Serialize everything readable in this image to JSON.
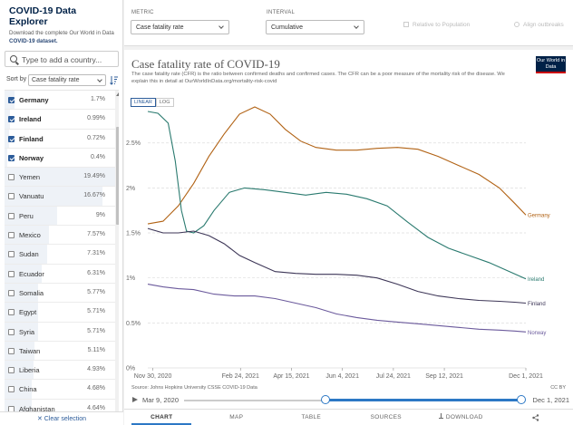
{
  "sidebar": {
    "title": "COVID-19 Data Explorer",
    "subtitle_prefix": "Download the complete Our World in Data",
    "subtitle_link": "COVID-19 dataset.",
    "search_placeholder": "Type to add a country...",
    "sort_label": "Sort by",
    "sort_value": "Case fatality rate",
    "clear_selection": "✕ Clear selection",
    "countries": [
      {
        "name": "Germany",
        "value": "1.7%",
        "selected": true
      },
      {
        "name": "Ireland",
        "value": "0.99%",
        "selected": true
      },
      {
        "name": "Finland",
        "value": "0.72%",
        "selected": true
      },
      {
        "name": "Norway",
        "value": "0.4%",
        "selected": true
      },
      {
        "name": "Yemen",
        "value": "19.49%",
        "selected": false
      },
      {
        "name": "Vanuatu",
        "value": "16.67%",
        "selected": false
      },
      {
        "name": "Peru",
        "value": "9%",
        "selected": false
      },
      {
        "name": "Mexico",
        "value": "7.57%",
        "selected": false
      },
      {
        "name": "Sudan",
        "value": "7.31%",
        "selected": false
      },
      {
        "name": "Ecuador",
        "value": "6.31%",
        "selected": false
      },
      {
        "name": "Somalia",
        "value": "5.77%",
        "selected": false
      },
      {
        "name": "Egypt",
        "value": "5.71%",
        "selected": false
      },
      {
        "name": "Syria",
        "value": "5.71%",
        "selected": false
      },
      {
        "name": "Taiwan",
        "value": "5.11%",
        "selected": false
      },
      {
        "name": "Liberia",
        "value": "4.93%",
        "selected": false
      },
      {
        "name": "China",
        "value": "4.68%",
        "selected": false
      },
      {
        "name": "Afghanistan",
        "value": "4.64%",
        "selected": false
      }
    ]
  },
  "controls": {
    "metric_label": "METRIC",
    "metric_value": "Case fatality rate",
    "interval_label": "INTERVAL",
    "interval_value": "Cumulative",
    "relative_label": "Relative to Population",
    "align_label": "Align outbreaks"
  },
  "chart": {
    "title": "Case fatality rate of COVID-19",
    "subtitle": "The case fatality rate (CFR) is the ratio between confirmed deaths and confirmed cases. The CFR can be a poor measure of the mortality risk of the disease. We explain this in detail at OurWorldInData.org/mortality-risk-covid",
    "logo": "Our World in Data",
    "scale_linear": "LINEAR",
    "scale_log": "LOG",
    "source": "Source: Johns Hopkins University CSSE COVID-19 Data",
    "license": "CC BY"
  },
  "timeline": {
    "start": "Mar 9, 2020",
    "end": "Dec 1, 2021"
  },
  "tabs": [
    "CHART",
    "MAP",
    "TABLE",
    "SOURCES",
    "DOWNLOAD",
    "share-icon"
  ],
  "chart_data": {
    "type": "line",
    "title": "Case fatality rate of COVID-19",
    "x_ticks": [
      "Nov 30, 2020",
      "Feb 24, 2021",
      "Apr 15, 2021",
      "Jun 4, 2021",
      "Jul 24, 2021",
      "Sep 12, 2021",
      "Dec 1, 2021"
    ],
    "x_tick_days": [
      0,
      86,
      136,
      186,
      236,
      286,
      366
    ],
    "xlim_days": [
      -5,
      366
    ],
    "y_ticks": [
      "0%",
      "0.5%",
      "1%",
      "1.5%",
      "2%",
      "2.5%"
    ],
    "y_tick_values": [
      0,
      0.5,
      1,
      1.5,
      2,
      2.5
    ],
    "ylim": [
      0,
      2.9
    ],
    "series": [
      {
        "name": "Germany",
        "color": "#b16214",
        "points": [
          [
            -5,
            1.6
          ],
          [
            10,
            1.63
          ],
          [
            25,
            1.8
          ],
          [
            40,
            2.05
          ],
          [
            55,
            2.35
          ],
          [
            70,
            2.6
          ],
          [
            85,
            2.82
          ],
          [
            100,
            2.9
          ],
          [
            115,
            2.82
          ],
          [
            130,
            2.65
          ],
          [
            145,
            2.52
          ],
          [
            160,
            2.45
          ],
          [
            180,
            2.42
          ],
          [
            200,
            2.42
          ],
          [
            220,
            2.44
          ],
          [
            240,
            2.45
          ],
          [
            260,
            2.43
          ],
          [
            280,
            2.35
          ],
          [
            300,
            2.25
          ],
          [
            320,
            2.15
          ],
          [
            340,
            2.0
          ],
          [
            355,
            1.83
          ],
          [
            366,
            1.7
          ]
        ]
      },
      {
        "name": "Ireland",
        "color": "#2a7a6f",
        "points": [
          [
            -5,
            2.85
          ],
          [
            5,
            2.83
          ],
          [
            15,
            2.72
          ],
          [
            22,
            2.3
          ],
          [
            28,
            1.75
          ],
          [
            33,
            1.52
          ],
          [
            40,
            1.5
          ],
          [
            50,
            1.58
          ],
          [
            60,
            1.75
          ],
          [
            75,
            1.95
          ],
          [
            90,
            2.0
          ],
          [
            110,
            1.98
          ],
          [
            130,
            1.95
          ],
          [
            150,
            1.92
          ],
          [
            170,
            1.95
          ],
          [
            190,
            1.93
          ],
          [
            210,
            1.88
          ],
          [
            230,
            1.8
          ],
          [
            250,
            1.62
          ],
          [
            270,
            1.45
          ],
          [
            290,
            1.33
          ],
          [
            310,
            1.25
          ],
          [
            330,
            1.17
          ],
          [
            350,
            1.07
          ],
          [
            366,
            0.99
          ]
        ]
      },
      {
        "name": "Finland",
        "color": "#3d3657",
        "points": [
          [
            -5,
            1.55
          ],
          [
            10,
            1.5
          ],
          [
            25,
            1.5
          ],
          [
            40,
            1.52
          ],
          [
            55,
            1.47
          ],
          [
            70,
            1.38
          ],
          [
            85,
            1.25
          ],
          [
            100,
            1.17
          ],
          [
            120,
            1.07
          ],
          [
            140,
            1.05
          ],
          [
            160,
            1.04
          ],
          [
            180,
            1.04
          ],
          [
            200,
            1.03
          ],
          [
            220,
            1.0
          ],
          [
            240,
            0.93
          ],
          [
            260,
            0.85
          ],
          [
            280,
            0.8
          ],
          [
            300,
            0.77
          ],
          [
            320,
            0.75
          ],
          [
            340,
            0.74
          ],
          [
            355,
            0.73
          ],
          [
            366,
            0.72
          ]
        ]
      },
      {
        "name": "Norway",
        "color": "#6b5a9c",
        "points": [
          [
            -5,
            0.93
          ],
          [
            10,
            0.9
          ],
          [
            25,
            0.88
          ],
          [
            40,
            0.87
          ],
          [
            60,
            0.82
          ],
          [
            80,
            0.8
          ],
          [
            100,
            0.8
          ],
          [
            120,
            0.77
          ],
          [
            140,
            0.72
          ],
          [
            160,
            0.67
          ],
          [
            180,
            0.6
          ],
          [
            200,
            0.56
          ],
          [
            220,
            0.53
          ],
          [
            240,
            0.51
          ],
          [
            260,
            0.49
          ],
          [
            280,
            0.47
          ],
          [
            300,
            0.45
          ],
          [
            320,
            0.43
          ],
          [
            340,
            0.42
          ],
          [
            355,
            0.41
          ],
          [
            366,
            0.4
          ]
        ]
      }
    ]
  }
}
